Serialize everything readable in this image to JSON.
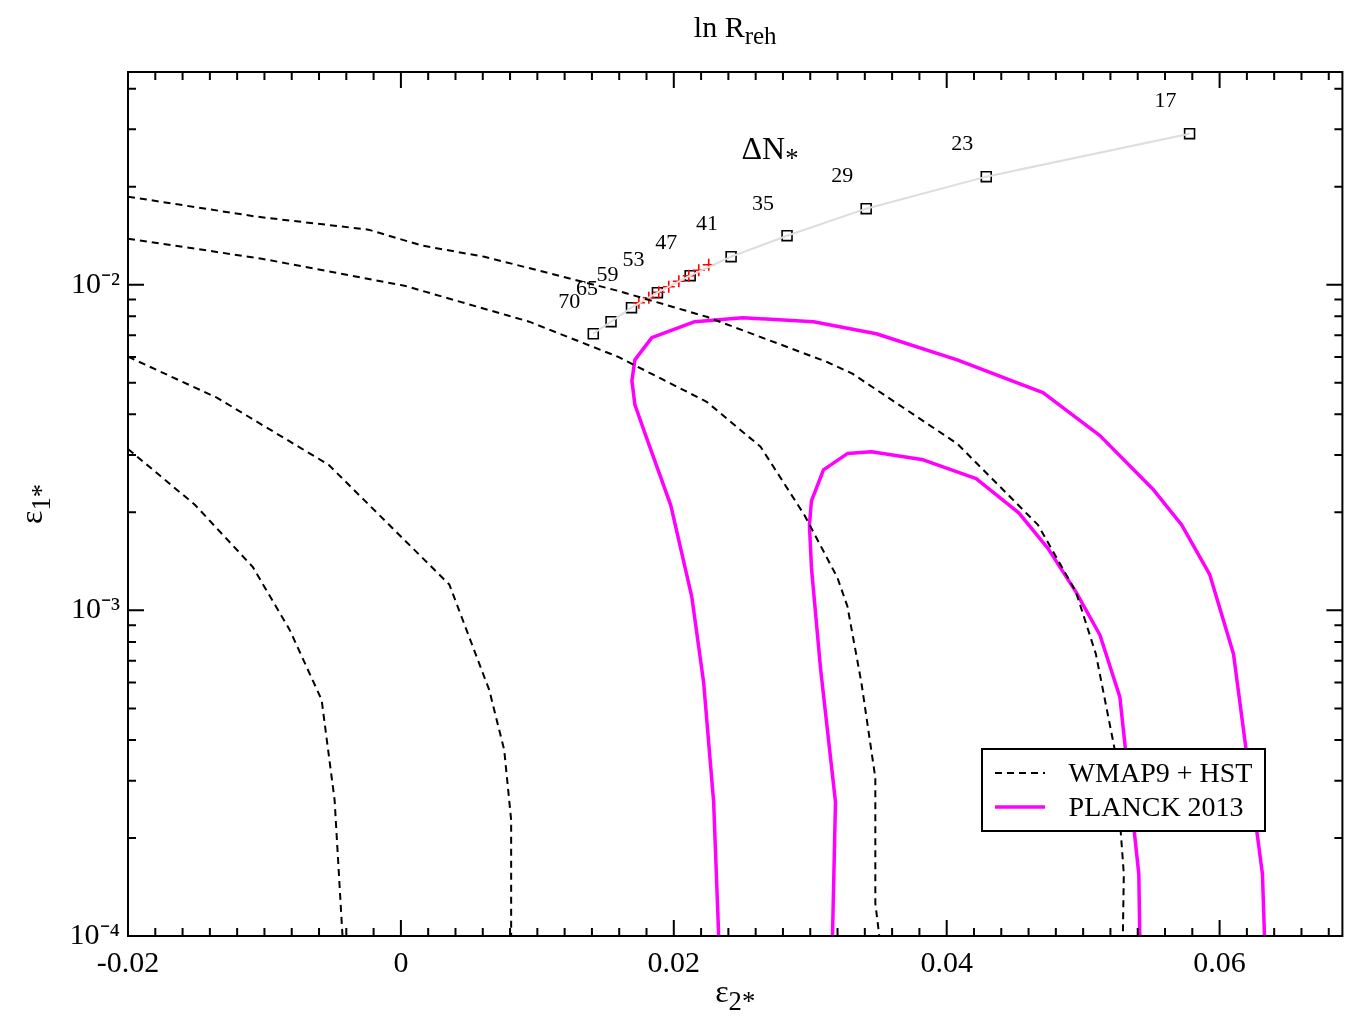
{
  "chart_data": {
    "type": "line",
    "title": "ln R$_{reh}$",
    "xlabel": "ε$_{2*}$",
    "ylabel": "ε$_{1*}$",
    "log": "y",
    "grid": false,
    "legend": "bottom right",
    "xlim": [
      -0.02,
      0.069
    ],
    "ylim": [
      0.0001,
      0.045
    ],
    "xticks": [
      -0.02,
      {
        "value": -0.018,
        "label": null
      },
      {
        "value": -0.016,
        "label": null
      },
      {
        "value": -0.014,
        "label": null
      },
      {
        "value": -0.012,
        "label": null
      },
      {
        "value": -0.01,
        "label": null
      },
      {
        "value": -0.008,
        "label": null
      },
      {
        "value": -0.006,
        "label": null
      },
      {
        "value": -0.004,
        "label": null
      },
      {
        "value": -0.002,
        "label": null
      },
      0,
      {
        "value": 0.002,
        "label": null
      },
      {
        "value": 0.004,
        "label": null
      },
      {
        "value": 0.006,
        "label": null
      },
      {
        "value": 0.008,
        "label": null
      },
      {
        "value": 0.01,
        "label": null
      },
      {
        "value": 0.012,
        "label": null
      },
      {
        "value": 0.014,
        "label": null
      },
      {
        "value": 0.016,
        "label": null
      },
      {
        "value": 0.018,
        "label": null
      },
      0.02,
      {
        "value": 0.022,
        "label": null
      },
      {
        "value": 0.024,
        "label": null
      },
      {
        "value": 0.026,
        "label": null
      },
      {
        "value": 0.028,
        "label": null
      },
      {
        "value": 0.03,
        "label": null
      },
      {
        "value": 0.032,
        "label": null
      },
      {
        "value": 0.034,
        "label": null
      },
      {
        "value": 0.036,
        "label": null
      },
      {
        "value": 0.038,
        "label": null
      },
      0.04,
      {
        "value": 0.042,
        "label": null
      },
      {
        "value": 0.044,
        "label": null
      },
      {
        "value": 0.046,
        "label": null
      },
      {
        "value": 0.048,
        "label": null
      },
      {
        "value": 0.05,
        "label": null
      },
      {
        "value": 0.052,
        "label": null
      },
      {
        "value": 0.054,
        "label": null
      },
      {
        "value": 0.056,
        "label": null
      },
      {
        "value": 0.058,
        "label": null
      },
      0.06,
      {
        "value": 0.062,
        "label": null
      },
      {
        "value": 0.064,
        "label": null
      },
      {
        "value": 0.066,
        "label": null
      },
      {
        "value": 0.068,
        "label": null
      }
    ],
    "yticks": [
      {
        "value": 0.0001,
        "label": "10⁻⁴"
      },
      {
        "value": 0.0002,
        "label": null
      },
      {
        "value": 0.0003,
        "label": null
      },
      {
        "value": 0.0004,
        "label": null
      },
      {
        "value": 0.0005,
        "label": null
      },
      {
        "value": 0.0006,
        "label": null
      },
      {
        "value": 0.0007,
        "label": null
      },
      {
        "value": 0.0008,
        "label": null
      },
      {
        "value": 0.0009,
        "label": null
      },
      {
        "value": 0.001,
        "label": "10⁻³"
      },
      {
        "value": 0.002,
        "label": null
      },
      {
        "value": 0.003,
        "label": null
      },
      {
        "value": 0.004,
        "label": null
      },
      {
        "value": 0.005,
        "label": null
      },
      {
        "value": 0.006,
        "label": null
      },
      {
        "value": 0.007,
        "label": null
      },
      {
        "value": 0.008,
        "label": null
      },
      {
        "value": 0.009,
        "label": null
      },
      {
        "value": 0.01,
        "label": "10⁻²"
      },
      {
        "value": 0.02,
        "label": null
      },
      {
        "value": 0.03,
        "label": null
      },
      {
        "value": 0.04,
        "label": null
      }
    ],
    "annotations": [
      "ΔN$_{*}$",
      {
        "text": "70",
        "x": 0.0141,
        "y": 0.00707
      },
      {
        "text": "65",
        "x": 0.0154,
        "y": 0.0077
      },
      {
        "text": "59",
        "x": 0.0169,
        "y": 0.0085
      },
      {
        "text": "53",
        "x": 0.0188,
        "y": 0.00945
      },
      {
        "text": "47",
        "x": 0.0212,
        "y": 0.01066
      },
      {
        "text": "41",
        "x": 0.0242,
        "y": 0.01219
      },
      {
        "text": "35",
        "x": 0.0283,
        "y": 0.01414
      },
      {
        "text": "29",
        "x": 0.0341,
        "y": 0.01712
      },
      {
        "text": "23",
        "x": 0.0429,
        "y": 0.02147
      },
      {
        "text": "17",
        "x": 0.0578,
        "y": 0.0291
      }
    ],
    "series": [
      {
        "name": "WMAP9 + HST",
        "type": "line",
        "color": "#000000",
        "line_style": "dashed",
        "marker": "none",
        "x": [
          -0.02,
          -0.01057,
          -0.00238,
          0.00157,
          0.00611,
          0.011,
          0.0159,
          0.02241,
          0.03119,
          0.03309,
          0.04077,
          0.04669,
          0.04947,
          0.05093,
          0.05232,
          0.05298,
          0.05291
        ],
        "values": [
          0.01864,
          0.01618,
          0.01476,
          0.01318,
          0.01219,
          0.01081,
          0.00958,
          0.00797,
          0.0058,
          0.00533,
          0.00325,
          0.00183,
          0.00114,
          0.000735,
          0.000373,
          0.000155,
          0.0001
        ]
      },
      {
        "type": "line",
        "color": "#000000",
        "line_style": "dashed",
        "marker": "none",
        "x": [
          -0.02,
          -0.0102,
          0.00026,
          0.0094,
          0.0159,
          0.02241,
          0.02636,
          0.02958,
          0.03199,
          0.03272,
          0.03375,
          0.03477,
          0.03477,
          0.03506
        ],
        "values": [
          0.01385,
          0.01202,
          0.00993,
          0.0077,
          0.00601,
          0.00437,
          0.00318,
          0.00196,
          0.00126,
          0.00103,
          0.000599,
          0.000306,
          0.000126,
          0.0001
        ]
      },
      {
        "type": "line",
        "color": "#000000",
        "line_style": "dashed",
        "marker": "none",
        "x": [
          -0.02,
          -0.01349,
          -0.0053,
          0.00355,
          0.00647,
          0.00757,
          0.00808,
          0.00808
        ],
        "values": [
          0.00601,
          0.0045,
          0.0028,
          0.0012,
          0.00057,
          0.000373,
          0.000227,
          0.0001
        ]
      },
      {
        "type": "line",
        "color": "#000000",
        "line_style": "dashed",
        "marker": "none",
        "x": [
          -0.02,
          -0.0151,
          -0.01086,
          -0.00815,
          -0.00581,
          -0.00486,
          -0.00428
        ],
        "values": [
          0.00313,
          0.00211,
          0.00136,
          0.000871,
          0.000531,
          0.000262,
          0.0001
        ]
      },
      {
        "name": "PLANCK 2013",
        "type": "line",
        "color": "#ff00ff",
        "line_style": "solid",
        "marker": "none",
        "x": [
          0.02329,
          0.02292,
          0.02219,
          0.02132,
          0.01978,
          0.01803,
          0.01715,
          0.01693,
          0.01715,
          0.01839,
          0.02154,
          0.02505,
          0.03024,
          0.03484,
          0.04077,
          0.04706,
          0.05123,
          0.0551,
          0.05722,
          0.05927,
          0.06102,
          0.06241,
          0.06314,
          0.06329
        ],
        "values": [
          0.0001,
          0.000258,
          0.000599,
          0.0011,
          0.0021,
          0.00336,
          0.00428,
          0.00507,
          0.00588,
          0.00688,
          0.0077,
          0.00792,
          0.0077,
          0.00707,
          0.00588,
          0.00466,
          0.00344,
          0.00236,
          0.00183,
          0.00129,
          0.000735,
          null,
          0.000155,
          0.0001
        ]
      },
      {
        "type": "line",
        "color": "#ff00ff",
        "line_style": "solid",
        "marker": "none",
        "x": [
          0.03163,
          0.03185,
          0.03075,
          0.03009,
          0.02994,
          0.03009,
          0.03097,
          0.03272,
          0.03448,
          0.03828,
          0.04216,
          0.0453,
          0.04742,
          0.04947,
          0.05123,
          0.05269,
          0.05371,
          0.05408,
          0.05415
        ],
        "values": [
          0.0001,
          0.000258,
          0.000666,
          0.00135,
          0.00183,
          0.00217,
          0.0027,
          0.00303,
          0.00307,
          0.0029,
          0.00254,
          0.00199,
          0.00155,
          0.00114,
          0.00084,
          0.000542,
          null,
          0.000155,
          0.0001
        ]
      },
      {
        "type": "line",
        "color": "#dddddd",
        "line_style": "solid",
        "marker": "none",
        "x": [
          0.0141,
          0.0154,
          0.0169,
          0.0188,
          0.0212,
          0.0242,
          0.0283,
          0.0341,
          0.0429,
          0.0578
        ],
        "values": [
          0.00707,
          0.0077,
          0.0085,
          0.00945,
          0.01066,
          0.01219,
          0.01414,
          0.01712,
          0.02147,
          0.0291
        ]
      },
      {
        "type": "scatter",
        "color": "#ff0000",
        "marker": "cross",
        "x": [
          0.01744,
          0.01817,
          0.0189,
          0.01963,
          0.02037,
          0.0211,
          0.02183,
          0.02256
        ],
        "values": [
          0.0088,
          0.00912,
          0.00948,
          0.00986,
          0.01025,
          0.01066,
          0.01108,
          0.01152
        ]
      },
      {
        "type": "scatter",
        "color": "#000000",
        "marker": "square",
        "x": [
          0.0141,
          0.0154,
          0.0169,
          0.0188,
          0.0212,
          0.0242,
          0.0283,
          0.0341,
          0.0429,
          0.0578
        ],
        "values": [
          0.00707,
          0.0077,
          0.0085,
          0.00945,
          0.01066,
          0.01219,
          0.01414,
          0.01712,
          0.02147,
          0.0291
        ]
      }
    ]
  }
}
